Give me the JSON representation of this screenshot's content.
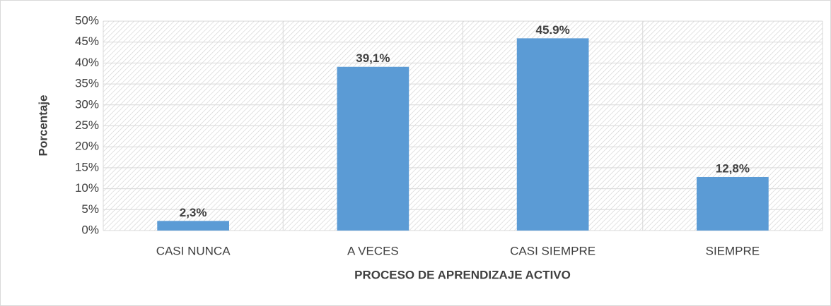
{
  "chart_data": {
    "type": "bar",
    "categories": [
      "CASI NUNCA",
      "A VECES",
      "CASI SIEMPRE",
      "SIEMPRE"
    ],
    "values": [
      2.3,
      39.1,
      45.9,
      12.8
    ],
    "value_labels": [
      "2,3%",
      "39,1%",
      "45.9%",
      "12,8%"
    ],
    "color": "#5b9bd5",
    "ylim": [
      0,
      50
    ],
    "yticks": [
      {
        "value": 0,
        "label": "0%"
      },
      {
        "value": 5,
        "label": "5%"
      },
      {
        "value": 10,
        "label": "10%"
      },
      {
        "value": 15,
        "label": "15%"
      },
      {
        "value": 20,
        "label": "20%"
      },
      {
        "value": 25,
        "label": "25%"
      },
      {
        "value": 30,
        "label": "30%"
      },
      {
        "value": 35,
        "label": "35%"
      },
      {
        "value": 40,
        "label": "40%"
      },
      {
        "value": 45,
        "label": "45%"
      },
      {
        "value": 50,
        "label": "50%"
      }
    ],
    "y_label": "Porcentaje",
    "x_label": "PROCESO DE APRENDIZAJE ACTIVO",
    "grid": true
  }
}
